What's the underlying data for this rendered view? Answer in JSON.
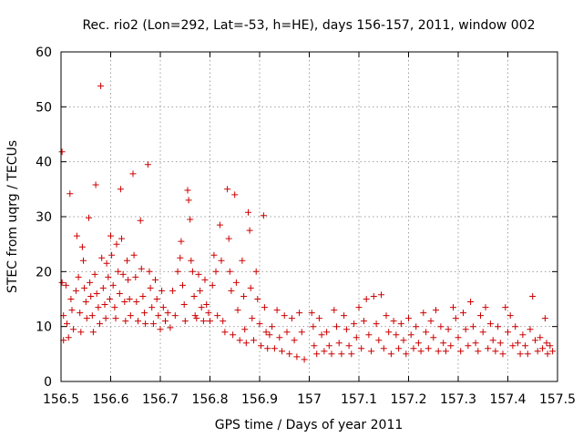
{
  "chart_data": {
    "type": "scatter",
    "title": "Rec. rio2 (Lon=292, Lat=-53, h=HE), days 156-157, 2011, window 002",
    "xlabel": "GPS time / Days of year 2011",
    "ylabel": "STEC from uqrg / TECUs",
    "xlim": [
      156.5,
      157.5
    ],
    "ylim": [
      0,
      60
    ],
    "grid": true,
    "color": "#cc0000",
    "marker": "plus",
    "x_ticks": [
      156.5,
      156.6,
      156.7,
      156.8,
      156.9,
      157.0,
      157.1,
      157.2,
      157.3,
      157.4,
      157.5
    ],
    "x_tick_labels": [
      "156.5",
      "156.6",
      "156.7",
      "156.8",
      "156.9",
      "157",
      "157.1",
      "157.2",
      "157.3",
      "157.4",
      "157.5"
    ],
    "y_ticks": [
      0,
      10,
      20,
      30,
      40,
      50,
      60
    ],
    "y_tick_labels": [
      "0",
      "10",
      "20",
      "30",
      "40",
      "50",
      "60"
    ],
    "points": [
      [
        156.502,
        41.8
      ],
      [
        156.502,
        18.0
      ],
      [
        156.505,
        12.0
      ],
      [
        156.505,
        7.5
      ],
      [
        156.51,
        17.5
      ],
      [
        156.512,
        10.5
      ],
      [
        156.515,
        8.0
      ],
      [
        156.518,
        34.2
      ],
      [
        156.52,
        15.0
      ],
      [
        156.522,
        13.0
      ],
      [
        156.525,
        9.5
      ],
      [
        156.53,
        16.5
      ],
      [
        156.532,
        26.5
      ],
      [
        156.535,
        19.0
      ],
      [
        156.538,
        12.5
      ],
      [
        156.54,
        9.0
      ],
      [
        156.543,
        24.5
      ],
      [
        156.545,
        22.0
      ],
      [
        156.547,
        17.0
      ],
      [
        156.55,
        14.5
      ],
      [
        156.552,
        11.5
      ],
      [
        156.556,
        29.8
      ],
      [
        156.558,
        18.0
      ],
      [
        156.56,
        15.5
      ],
      [
        156.563,
        12.0
      ],
      [
        156.565,
        9.0
      ],
      [
        156.568,
        19.5
      ],
      [
        156.57,
        35.8
      ],
      [
        156.572,
        16.0
      ],
      [
        156.575,
        13.5
      ],
      [
        156.578,
        10.5
      ],
      [
        156.58,
        53.8
      ],
      [
        156.582,
        22.5
      ],
      [
        156.585,
        17.0
      ],
      [
        156.588,
        14.0
      ],
      [
        156.59,
        11.5
      ],
      [
        156.592,
        21.5
      ],
      [
        156.595,
        19.0
      ],
      [
        156.598,
        15.0
      ],
      [
        156.6,
        26.5
      ],
      [
        156.602,
        23.0
      ],
      [
        156.605,
        17.5
      ],
      [
        156.608,
        13.5
      ],
      [
        156.61,
        11.5
      ],
      [
        156.612,
        25.0
      ],
      [
        156.615,
        20.0
      ],
      [
        156.618,
        16.0
      ],
      [
        156.62,
        35.0
      ],
      [
        156.622,
        26.0
      ],
      [
        156.625,
        19.5
      ],
      [
        156.628,
        14.5
      ],
      [
        156.63,
        11.0
      ],
      [
        156.633,
        22.0
      ],
      [
        156.635,
        18.5
      ],
      [
        156.638,
        15.0
      ],
      [
        156.64,
        12.0
      ],
      [
        156.645,
        37.8
      ],
      [
        156.647,
        23.0
      ],
      [
        156.65,
        19.0
      ],
      [
        156.652,
        14.5
      ],
      [
        156.655,
        11.0
      ],
      [
        156.66,
        29.3
      ],
      [
        156.662,
        20.5
      ],
      [
        156.665,
        15.5
      ],
      [
        156.668,
        12.5
      ],
      [
        156.67,
        10.5
      ],
      [
        156.675,
        39.5
      ],
      [
        156.678,
        20.0
      ],
      [
        156.68,
        17.0
      ],
      [
        156.683,
        13.5
      ],
      [
        156.686,
        10.5
      ],
      [
        156.69,
        18.5
      ],
      [
        156.693,
        15.0
      ],
      [
        156.696,
        12.0
      ],
      [
        156.7,
        9.5
      ],
      [
        156.703,
        16.5
      ],
      [
        156.706,
        13.5
      ],
      [
        156.71,
        11.0
      ],
      [
        156.715,
        12.5
      ],
      [
        156.72,
        9.8
      ],
      [
        156.725,
        16.5
      ],
      [
        156.73,
        12.0
      ],
      [
        156.735,
        20.0
      ],
      [
        156.74,
        22.5
      ],
      [
        156.742,
        25.5
      ],
      [
        156.745,
        17.5
      ],
      [
        156.748,
        14.0
      ],
      [
        156.75,
        11.0
      ],
      [
        156.755,
        34.8
      ],
      [
        156.757,
        33.0
      ],
      [
        156.76,
        29.5
      ],
      [
        156.762,
        22.0
      ],
      [
        156.765,
        20.0
      ],
      [
        156.768,
        15.5
      ],
      [
        156.77,
        12.0
      ],
      [
        156.773,
        11.5
      ],
      [
        156.777,
        19.5
      ],
      [
        156.78,
        16.5
      ],
      [
        156.783,
        13.5
      ],
      [
        156.787,
        11.0
      ],
      [
        156.79,
        18.5
      ],
      [
        156.793,
        14.0
      ],
      [
        156.797,
        12.5
      ],
      [
        156.8,
        11.0
      ],
      [
        156.805,
        17.5
      ],
      [
        156.808,
        23.0
      ],
      [
        156.812,
        20.0
      ],
      [
        156.815,
        12.0
      ],
      [
        156.82,
        28.5
      ],
      [
        156.823,
        22.0
      ],
      [
        156.826,
        11.0
      ],
      [
        156.83,
        9.0
      ],
      [
        156.835,
        35.0
      ],
      [
        156.838,
        26.0
      ],
      [
        156.84,
        20.0
      ],
      [
        156.843,
        16.5
      ],
      [
        156.846,
        8.5
      ],
      [
        156.85,
        34.0
      ],
      [
        156.853,
        18.0
      ],
      [
        156.856,
        13.0
      ],
      [
        156.86,
        7.5
      ],
      [
        156.865,
        22.0
      ],
      [
        156.868,
        15.5
      ],
      [
        156.87,
        9.5
      ],
      [
        156.873,
        7.0
      ],
      [
        156.877,
        30.8
      ],
      [
        156.88,
        27.5
      ],
      [
        156.882,
        17.0
      ],
      [
        156.885,
        11.5
      ],
      [
        156.888,
        7.5
      ],
      [
        156.893,
        20.0
      ],
      [
        156.896,
        15.0
      ],
      [
        156.9,
        10.5
      ],
      [
        156.903,
        6.5
      ],
      [
        156.908,
        30.2
      ],
      [
        156.91,
        13.5
      ],
      [
        156.913,
        9.0
      ],
      [
        156.916,
        6.0
      ],
      [
        156.92,
        8.5
      ],
      [
        156.925,
        10.0
      ],
      [
        156.93,
        6.0
      ],
      [
        156.935,
        13.0
      ],
      [
        156.94,
        8.0
      ],
      [
        156.945,
        5.5
      ],
      [
        156.95,
        12.0
      ],
      [
        156.955,
        9.0
      ],
      [
        156.96,
        5.0
      ],
      [
        156.965,
        11.5
      ],
      [
        156.97,
        7.5
      ],
      [
        156.975,
        4.5
      ],
      [
        156.98,
        12.5
      ],
      [
        156.985,
        9.0
      ],
      [
        156.99,
        4.0
      ],
      [
        157.005,
        12.5
      ],
      [
        157.008,
        10.0
      ],
      [
        157.01,
        6.5
      ],
      [
        157.015,
        5.0
      ],
      [
        157.02,
        11.5
      ],
      [
        157.025,
        8.5
      ],
      [
        157.03,
        5.5
      ],
      [
        157.035,
        9.0
      ],
      [
        157.04,
        6.5
      ],
      [
        157.045,
        5.0
      ],
      [
        157.05,
        13.0
      ],
      [
        157.055,
        10.0
      ],
      [
        157.06,
        7.0
      ],
      [
        157.065,
        5.0
      ],
      [
        157.07,
        12.0
      ],
      [
        157.075,
        9.5
      ],
      [
        157.08,
        6.5
      ],
      [
        157.085,
        5.0
      ],
      [
        157.09,
        10.5
      ],
      [
        157.095,
        8.0
      ],
      [
        157.1,
        13.5
      ],
      [
        157.105,
        6.0
      ],
      [
        157.11,
        11.0
      ],
      [
        157.115,
        15.0
      ],
      [
        157.12,
        8.5
      ],
      [
        157.125,
        5.5
      ],
      [
        157.13,
        15.5
      ],
      [
        157.135,
        10.5
      ],
      [
        157.14,
        7.5
      ],
      [
        157.145,
        15.8
      ],
      [
        157.15,
        6.0
      ],
      [
        157.155,
        12.0
      ],
      [
        157.16,
        9.0
      ],
      [
        157.165,
        5.0
      ],
      [
        157.17,
        11.0
      ],
      [
        157.175,
        8.5
      ],
      [
        157.18,
        6.0
      ],
      [
        157.185,
        10.5
      ],
      [
        157.19,
        7.5
      ],
      [
        157.195,
        5.0
      ],
      [
        157.2,
        11.5
      ],
      [
        157.205,
        8.5
      ],
      [
        157.21,
        6.0
      ],
      [
        157.215,
        10.0
      ],
      [
        157.22,
        7.0
      ],
      [
        157.225,
        5.5
      ],
      [
        157.23,
        12.5
      ],
      [
        157.235,
        9.0
      ],
      [
        157.24,
        6.0
      ],
      [
        157.245,
        11.0
      ],
      [
        157.25,
        8.0
      ],
      [
        157.255,
        13.0
      ],
      [
        157.26,
        5.5
      ],
      [
        157.265,
        10.0
      ],
      [
        157.27,
        7.0
      ],
      [
        157.275,
        5.5
      ],
      [
        157.28,
        9.5
      ],
      [
        157.285,
        6.5
      ],
      [
        157.29,
        13.5
      ],
      [
        157.295,
        11.5
      ],
      [
        157.3,
        8.0
      ],
      [
        157.305,
        5.5
      ],
      [
        157.31,
        12.5
      ],
      [
        157.315,
        9.5
      ],
      [
        157.32,
        6.5
      ],
      [
        157.325,
        14.5
      ],
      [
        157.33,
        10.0
      ],
      [
        157.335,
        7.0
      ],
      [
        157.34,
        5.5
      ],
      [
        157.345,
        12.0
      ],
      [
        157.35,
        9.0
      ],
      [
        157.355,
        13.5
      ],
      [
        157.36,
        6.0
      ],
      [
        157.365,
        10.5
      ],
      [
        157.37,
        7.5
      ],
      [
        157.375,
        5.5
      ],
      [
        157.38,
        10.0
      ],
      [
        157.385,
        7.0
      ],
      [
        157.39,
        5.0
      ],
      [
        157.395,
        13.5
      ],
      [
        157.4,
        9.0
      ],
      [
        157.405,
        12.0
      ],
      [
        157.41,
        6.5
      ],
      [
        157.415,
        10.0
      ],
      [
        157.42,
        7.0
      ],
      [
        157.425,
        5.0
      ],
      [
        157.43,
        8.5
      ],
      [
        157.435,
        6.5
      ],
      [
        157.44,
        5.0
      ],
      [
        157.445,
        9.5
      ],
      [
        157.45,
        15.5
      ],
      [
        157.455,
        7.5
      ],
      [
        157.46,
        5.5
      ],
      [
        157.465,
        8.0
      ],
      [
        157.47,
        6.0
      ],
      [
        157.475,
        11.5
      ],
      [
        157.478,
        7.0
      ],
      [
        157.48,
        5.0
      ],
      [
        157.485,
        6.5
      ],
      [
        157.49,
        5.5
      ]
    ]
  }
}
